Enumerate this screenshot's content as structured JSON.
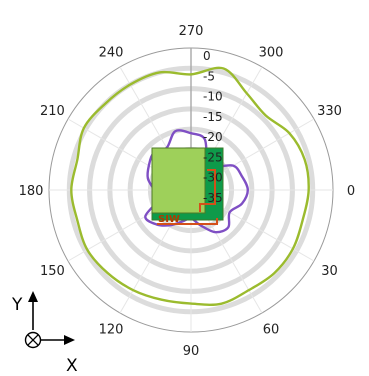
{
  "chart_data": {
    "type": "polar-line",
    "angle_ticks": [
      "0",
      "30",
      "60",
      "90",
      "120",
      "150",
      "180",
      "210",
      "240",
      "270",
      "300",
      "330"
    ],
    "radial_ticks": [
      "0",
      "-5",
      "-10",
      "-15",
      "-20",
      "-25",
      "-30",
      "-35"
    ],
    "radial_range": [
      -35,
      0
    ],
    "angle_direction": "clockwise",
    "zero_angle": "right",
    "grid": true,
    "series": [
      {
        "color": "#9bbb2e",
        "angles_deg": [
          0,
          15,
          30,
          45,
          60,
          75,
          90,
          105,
          120,
          135,
          150,
          165,
          180,
          195,
          210,
          225,
          240,
          255,
          270,
          285,
          300,
          315,
          330,
          345
        ],
        "values_db": [
          -6,
          -6.5,
          -6,
          -6,
          -6.5,
          -6,
          -7,
          -7,
          -6.5,
          -6,
          -5.5,
          -6,
          -5.5,
          -6,
          -4.5,
          -5,
          -5,
          -5,
          -6.5,
          -4,
          -7.5,
          -9,
          -7,
          -6
        ]
      },
      {
        "color": "#7f4fc4",
        "angles_deg": [
          0,
          15,
          30,
          45,
          60,
          75,
          90,
          105,
          120,
          135,
          150,
          165,
          180,
          195,
          210,
          225,
          240,
          255,
          270,
          285,
          300,
          315,
          330,
          345
        ],
        "values_db": [
          -21,
          -22,
          -24,
          -22,
          -23,
          -26,
          -28,
          -27,
          -25,
          -23,
          -22,
          -27,
          -26,
          -24,
          -23,
          -22,
          -23,
          -20,
          -21,
          -22,
          -27,
          -27,
          -23,
          -22
        ]
      }
    ],
    "inset": {
      "label": "SIW",
      "colors": [
        "#9ed05a",
        "#0e9a4a",
        "#d4501a"
      ]
    },
    "axes_triad": {
      "y_label": "Y",
      "x_label": "X"
    }
  }
}
